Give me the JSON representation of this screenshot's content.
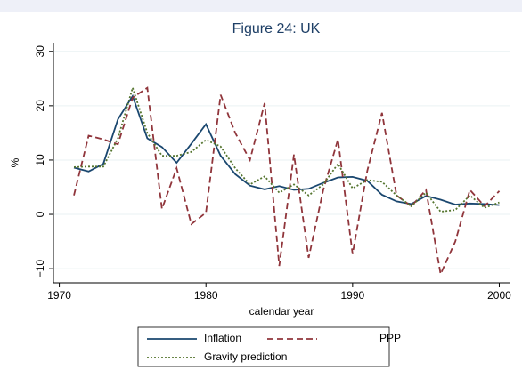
{
  "chart_data": {
    "type": "line",
    "title": "Figure 24: UK",
    "xlabel": "calendar year",
    "ylabel": "%",
    "x": [
      1971,
      1972,
      1973,
      1974,
      1975,
      1976,
      1977,
      1978,
      1979,
      1980,
      1981,
      1982,
      1983,
      1984,
      1985,
      1986,
      1987,
      1988,
      1989,
      1990,
      1991,
      1992,
      1993,
      1994,
      1995,
      1996,
      1997,
      1998,
      1999,
      2000
    ],
    "series": [
      {
        "name": "Inflation",
        "color": "#1a476f",
        "dash": "solid",
        "values": [
          8.6,
          7.9,
          9.3,
          17.5,
          21.8,
          14,
          12.4,
          9.5,
          13,
          16.6,
          10.8,
          7.4,
          5.3,
          4.6,
          5.2,
          4.5,
          4.7,
          5.8,
          6.8,
          6.9,
          6.2,
          3.6,
          2.4,
          1.9,
          3.4,
          2.7,
          1.8,
          2.0,
          1.9,
          1.7
        ]
      },
      {
        "name": "PPP",
        "color": "#90353b",
        "dash": "dash",
        "values": [
          3.5,
          14.5,
          13.8,
          12.9,
          21.5,
          23.3,
          1,
          8.5,
          -1.8,
          0.3,
          22,
          15,
          10,
          20.5,
          -9.5,
          11,
          -8,
          4.5,
          13.8,
          -7.3,
          8,
          18.7,
          3.5,
          1.5,
          4.5,
          -11,
          -5,
          4.5,
          1.5,
          4.3
        ]
      },
      {
        "name": "Gravity prediction",
        "color": "#55752f",
        "dash": "dot",
        "values": [
          8.7,
          8.8,
          8.8,
          14,
          23.3,
          15,
          10.8,
          10.8,
          11.5,
          13.7,
          12.5,
          8.5,
          5.5,
          7,
          4,
          5.5,
          3.5,
          5.5,
          9.3,
          4.8,
          6.3,
          6,
          3.5,
          1.5,
          4,
          0.5,
          0.8,
          3.5,
          1.2,
          2.2
        ]
      }
    ],
    "xlim": [
      1969.6,
      2000.7
    ],
    "xticks": [
      1970,
      1980,
      1990,
      2000
    ],
    "ylim": [
      -12.6,
      31.6
    ],
    "yticks": [
      {
        "value": -10,
        "label": "−10"
      },
      0,
      10,
      20,
      30
    ],
    "grid": true,
    "legend": "bottom"
  }
}
